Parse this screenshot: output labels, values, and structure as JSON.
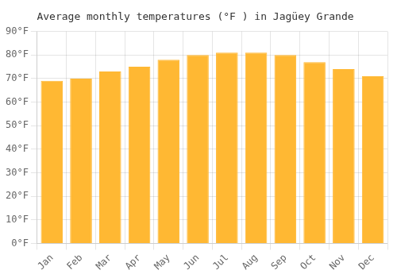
{
  "chart_data": {
    "type": "bar",
    "title": "Average monthly temperatures (°F ) in Jagüey Grande",
    "categories": [
      "Jan",
      "Feb",
      "Mar",
      "Apr",
      "May",
      "Jun",
      "Jul",
      "Aug",
      "Sep",
      "Oct",
      "Nov",
      "Dec"
    ],
    "values": [
      69,
      70,
      73,
      75,
      78,
      80,
      81,
      81,
      80,
      77,
      74,
      71
    ],
    "color": "#FFB833",
    "ylim": [
      0,
      90
    ],
    "yticks": [
      {
        "value": 0,
        "label": "0°F"
      },
      {
        "value": 10,
        "label": "10°F"
      },
      {
        "value": 20,
        "label": "20°F"
      },
      {
        "value": 30,
        "label": "30°F"
      },
      {
        "value": 40,
        "label": "40°F"
      },
      {
        "value": 50,
        "label": "50°F"
      },
      {
        "value": 60,
        "label": "60°F"
      },
      {
        "value": 70,
        "label": "70°F"
      },
      {
        "value": 80,
        "label": "80°F"
      },
      {
        "value": 90,
        "label": "90°F"
      }
    ],
    "grid": true
  }
}
